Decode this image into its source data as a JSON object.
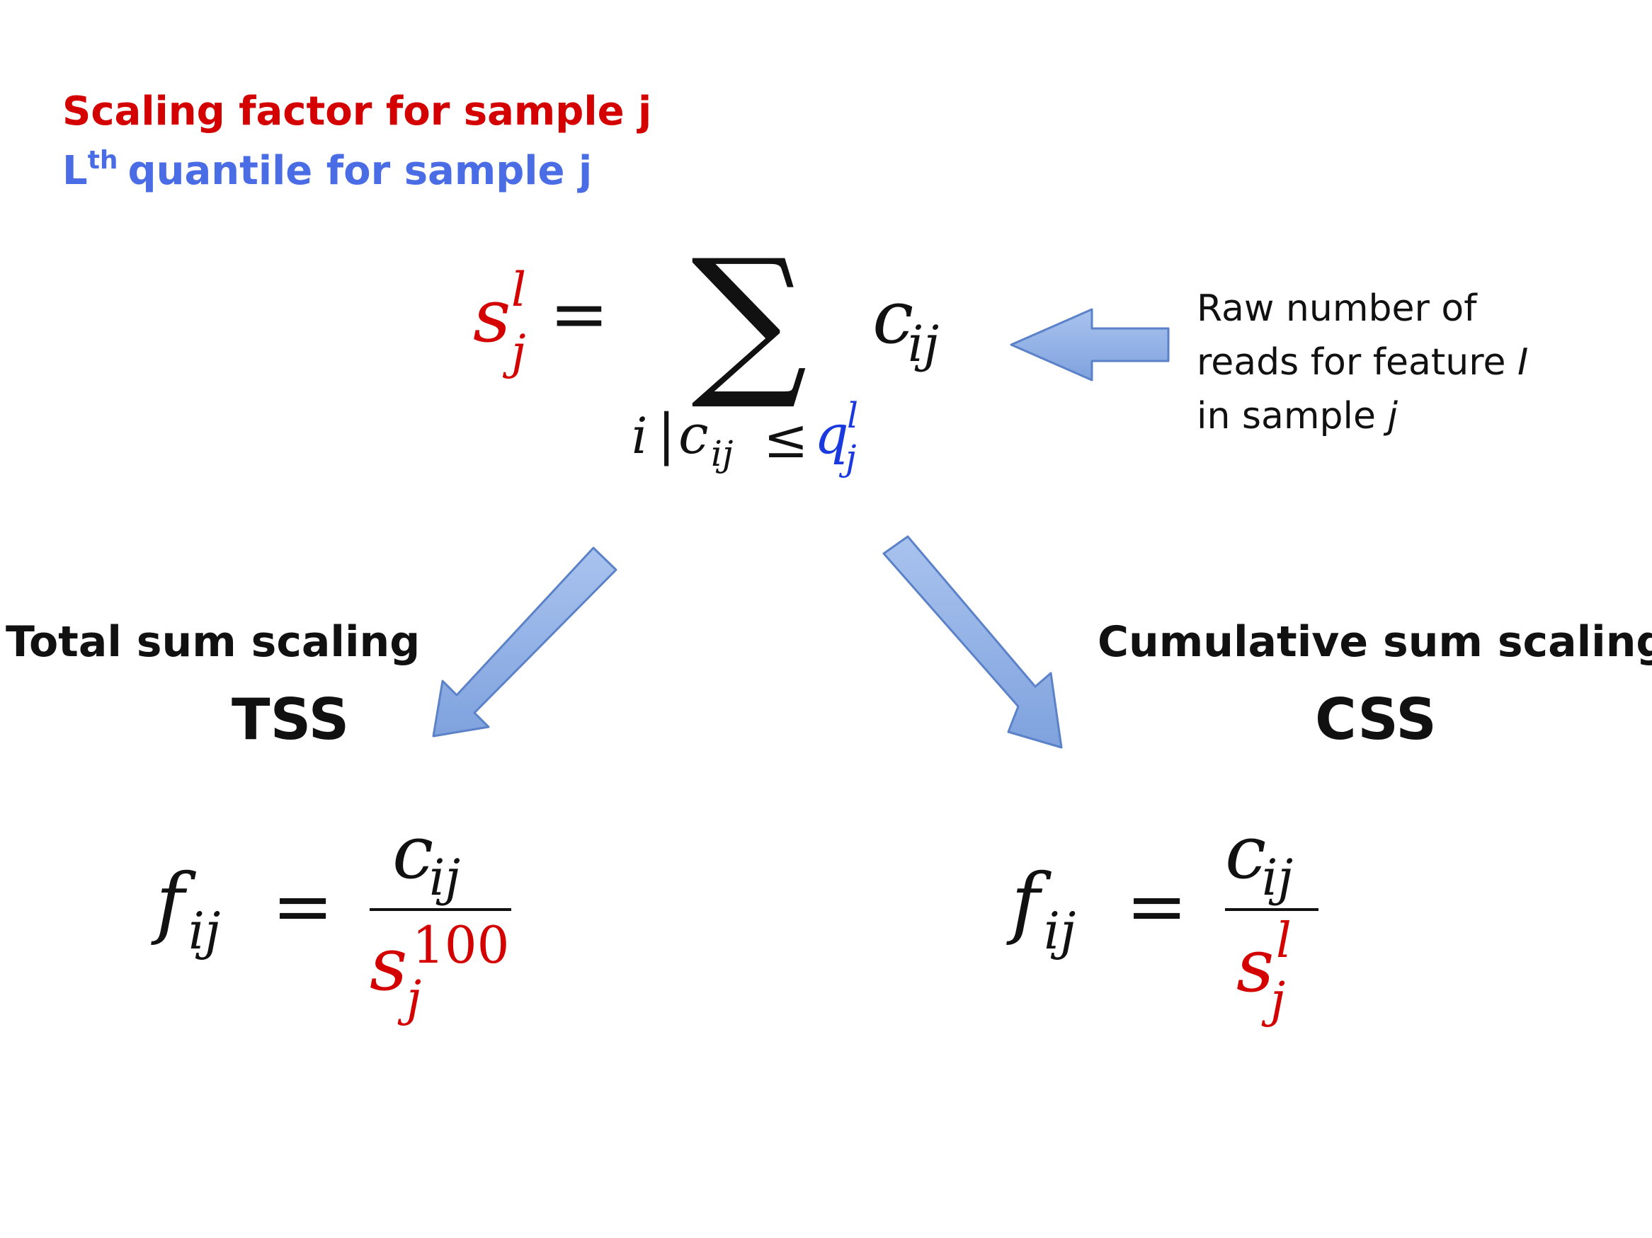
{
  "legend": {
    "scaling_factor": "Scaling factor for sample j",
    "quantile_base": "L",
    "quantile_sup": "th",
    "quantile_text": "quantile for sample j",
    "scaling_color": "#d40000",
    "quantile_color": "#4a6de5"
  },
  "formula_main": {
    "lhs_base": "s",
    "lhs_sup": "l",
    "lhs_sub": "j",
    "equals": "=",
    "sum_symbol": "∑",
    "term": "c",
    "term_sub": "ij",
    "limit_i": "i",
    "limit_bar": "|",
    "limit_c": "c",
    "limit_c_sub": "ij",
    "limit_leq": "≤",
    "limit_q": "q",
    "limit_q_sup": "l",
    "limit_q_sub": "j"
  },
  "annotation": {
    "line1": "Raw number of",
    "line2_text": "reads for feature ",
    "line2_italic": "I",
    "line3_text": "in sample ",
    "line3_italic": "j"
  },
  "tss": {
    "name": "Total sum scaling",
    "abbr": "TSS",
    "lhs": "f",
    "lhs_sub": "ij",
    "equals": "=",
    "numerator": "c",
    "numerator_sub": "ij",
    "denominator": "s",
    "denominator_sup": "100",
    "denominator_sub": "j"
  },
  "css": {
    "name": "Cumulative sum scaling",
    "abbr": "CSS",
    "lhs": "f",
    "lhs_sub": "ij",
    "equals": "=",
    "numerator": "c",
    "numerator_sub": "ij",
    "denominator": "s",
    "denominator_sup": "l",
    "denominator_sub": "j"
  },
  "colors": {
    "red": "#d40000",
    "blue": "#1a3ae0",
    "arrow_fill": "#8fb0e6",
    "arrow_stroke": "#5b82c8",
    "text": "#111111"
  }
}
